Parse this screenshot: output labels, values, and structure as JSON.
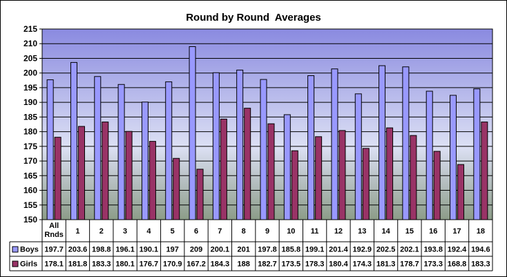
{
  "chart_data": {
    "type": "bar",
    "title": "Round by Round  Averages",
    "categories": [
      "All Rnds",
      "1",
      "2",
      "3",
      "4",
      "5",
      "6",
      "7",
      "8",
      "9",
      "10",
      "11",
      "12",
      "13",
      "14",
      "15",
      "16",
      "17",
      "18"
    ],
    "category_lines": [
      [
        "All",
        "Rnds"
      ],
      [
        "1"
      ],
      [
        "2"
      ],
      [
        "3"
      ],
      [
        "4"
      ],
      [
        "5"
      ],
      [
        "6"
      ],
      [
        "7"
      ],
      [
        "8"
      ],
      [
        "9"
      ],
      [
        "10"
      ],
      [
        "11"
      ],
      [
        "12"
      ],
      [
        "13"
      ],
      [
        "14"
      ],
      [
        "15"
      ],
      [
        "16"
      ],
      [
        "17"
      ],
      [
        "18"
      ]
    ],
    "series": [
      {
        "name": "Boys",
        "color": "#9999FF",
        "values": [
          197.7,
          203.6,
          198.8,
          196.1,
          190.1,
          197,
          209,
          200.1,
          201,
          197.8,
          185.8,
          199.1,
          201.4,
          192.9,
          202.5,
          202.1,
          193.8,
          192.4,
          194.6
        ],
        "labels": [
          "197.7",
          "203.6",
          "198.8",
          "196.1",
          "190.1",
          "197",
          "209",
          "200.1",
          "201",
          "197.8",
          "185.8",
          "199.1",
          "201.4",
          "192.9",
          "202.5",
          "202.1",
          "193.8",
          "192.4",
          "194.6"
        ]
      },
      {
        "name": "Girls",
        "color": "#993366",
        "values": [
          178.1,
          181.8,
          183.3,
          180.1,
          176.7,
          170.9,
          167.2,
          184.3,
          188,
          182.7,
          173.5,
          178.3,
          180.4,
          174.3,
          181.3,
          178.7,
          173.3,
          168.8,
          183.3
        ],
        "labels": [
          "178.1",
          "181.8",
          "183.3",
          "180.1",
          "176.7",
          "170.9",
          "167.2",
          "184.3",
          "188",
          "182.7",
          "173.5",
          "178.3",
          "180.4",
          "174.3",
          "181.3",
          "178.7",
          "173.3",
          "168.8",
          "183.3"
        ]
      }
    ],
    "yticks": [
      "150",
      "155",
      "160",
      "165",
      "170",
      "175",
      "180",
      "185",
      "190",
      "195",
      "200",
      "205",
      "210",
      "215"
    ],
    "ylim": [
      150,
      215
    ],
    "ytick_step": 5,
    "grid": true,
    "legend": "data-table",
    "colors": {
      "plot_top": "#8A8AE0",
      "plot_mid": "#DCE0F4",
      "plot_bottom": "#8C9C88",
      "grid": "#000000"
    }
  }
}
